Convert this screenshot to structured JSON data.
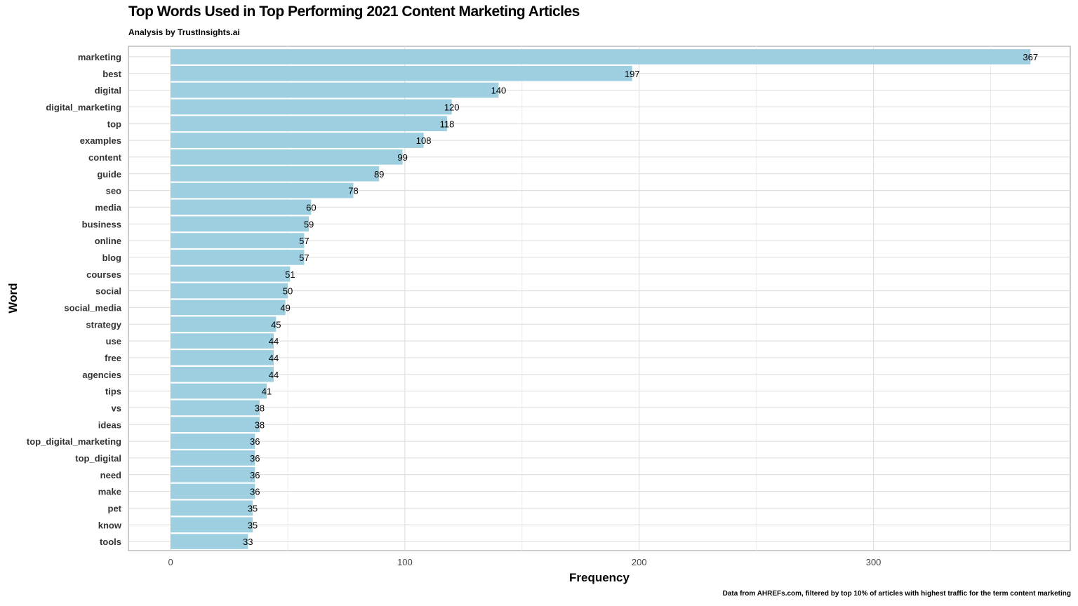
{
  "chart_data": {
    "type": "bar",
    "orientation": "horizontal",
    "title": "Top Words Used in Top Performing 2021 Content Marketing Articles",
    "subtitle": "Analysis by TrustInsights.ai",
    "caption": "Data from AHREFs.com, filtered by top 10% of articles with highest traffic for the term content marketing",
    "xlabel": "Frequency",
    "ylabel": "Word",
    "xlim": [
      -18,
      384
    ],
    "xticks": [
      0,
      100,
      200,
      300
    ],
    "grid": true,
    "bar_color": "#9ecfe0",
    "categories": [
      "marketing",
      "best",
      "digital",
      "digital_marketing",
      "top",
      "examples",
      "content",
      "guide",
      "seo",
      "media",
      "business",
      "online",
      "blog",
      "courses",
      "social",
      "social_media",
      "strategy",
      "use",
      "free",
      "agencies",
      "tips",
      "vs",
      "ideas",
      "top_digital_marketing",
      "top_digital",
      "need",
      "make",
      "pet",
      "know",
      "tools"
    ],
    "values": [
      367,
      197,
      140,
      120,
      118,
      108,
      99,
      89,
      78,
      60,
      59,
      57,
      57,
      51,
      50,
      49,
      45,
      44,
      44,
      44,
      41,
      38,
      38,
      36,
      36,
      36,
      36,
      35,
      35,
      33
    ]
  }
}
